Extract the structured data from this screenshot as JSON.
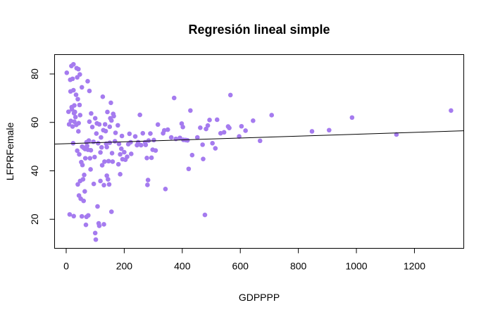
{
  "chart_data": {
    "type": "scatter",
    "title": "Regresión lineal simple",
    "xlabel": "GDPPPP",
    "ylabel": "LFPRFemale",
    "xlim": [
      -40,
      1370
    ],
    "ylim": [
      8,
      88
    ],
    "xticks": [
      0,
      200,
      400,
      600,
      800,
      1000,
      1200
    ],
    "yticks": [
      20,
      40,
      60,
      80
    ],
    "grid": false,
    "legend": "none",
    "point_color": "#A57BEF",
    "line_color": "#000000",
    "regression": {
      "intercept": 51.2,
      "slope": 0.0039
    },
    "points": [
      [
        2,
        80.5
      ],
      [
        8,
        64.4
      ],
      [
        10,
        59.2
      ],
      [
        12,
        22.0
      ],
      [
        14,
        77.6
      ],
      [
        15,
        72.8
      ],
      [
        16,
        60.6
      ],
      [
        18,
        83.3
      ],
      [
        19,
        66.3
      ],
      [
        20,
        65.4
      ],
      [
        22,
        78.0
      ],
      [
        22,
        58.3
      ],
      [
        24,
        51.4
      ],
      [
        25,
        84.0
      ],
      [
        25,
        73.3
      ],
      [
        26,
        21.3
      ],
      [
        27,
        63.8
      ],
      [
        28,
        67.0
      ],
      [
        28,
        60.3
      ],
      [
        30,
        64.3
      ],
      [
        32,
        62.2
      ],
      [
        34,
        71.4
      ],
      [
        35,
        59.0
      ],
      [
        36,
        82.4
      ],
      [
        38,
        78.6
      ],
      [
        38,
        48.3
      ],
      [
        40,
        69.6
      ],
      [
        40,
        34.4
      ],
      [
        42,
        82.0
      ],
      [
        42,
        56.3
      ],
      [
        43,
        59.7
      ],
      [
        44,
        29.8
      ],
      [
        45,
        46.8
      ],
      [
        46,
        67.2
      ],
      [
        47,
        79.8
      ],
      [
        48,
        63.0
      ],
      [
        48,
        35.8
      ],
      [
        50,
        28.5
      ],
      [
        52,
        43.6
      ],
      [
        54,
        21.2
      ],
      [
        54,
        74.5
      ],
      [
        55,
        50.0
      ],
      [
        56,
        42.4
      ],
      [
        58,
        36.5
      ],
      [
        60,
        49.5
      ],
      [
        60,
        27.6
      ],
      [
        62,
        38.3
      ],
      [
        64,
        31.5
      ],
      [
        65,
        49.0
      ],
      [
        66,
        45.2
      ],
      [
        68,
        17.7
      ],
      [
        70,
        51.8
      ],
      [
        70,
        21.0
      ],
      [
        72,
        50.3
      ],
      [
        74,
        77.0
      ],
      [
        75,
        48.7
      ],
      [
        76,
        21.6
      ],
      [
        78,
        52.5
      ],
      [
        80,
        73.0
      ],
      [
        80,
        60.3
      ],
      [
        82,
        45.2
      ],
      [
        84,
        40.6
      ],
      [
        85,
        48.5
      ],
      [
        86,
        63.7
      ],
      [
        90,
        58.1
      ],
      [
        94,
        52.0
      ],
      [
        95,
        34.6
      ],
      [
        98,
        45.7
      ],
      [
        100,
        14.3
      ],
      [
        100,
        61.7
      ],
      [
        102,
        11.6
      ],
      [
        104,
        55.4
      ],
      [
        106,
        59.6
      ],
      [
        108,
        25.3
      ],
      [
        110,
        51.4
      ],
      [
        112,
        18.3
      ],
      [
        114,
        59.2
      ],
      [
        114,
        17.3
      ],
      [
        118,
        35.8
      ],
      [
        118,
        47.6
      ],
      [
        120,
        53.8
      ],
      [
        122,
        49.7
      ],
      [
        124,
        42.3
      ],
      [
        126,
        70.6
      ],
      [
        128,
        56.8
      ],
      [
        130,
        34.1
      ],
      [
        130,
        17.9
      ],
      [
        132,
        43.8
      ],
      [
        134,
        59.2
      ],
      [
        136,
        56.4
      ],
      [
        138,
        51.2
      ],
      [
        140,
        49.8
      ],
      [
        140,
        38.0
      ],
      [
        142,
        64.3
      ],
      [
        144,
        36.5
      ],
      [
        146,
        44.0
      ],
      [
        148,
        34.4
      ],
      [
        150,
        58.2
      ],
      [
        150,
        51.6
      ],
      [
        152,
        61.7
      ],
      [
        154,
        68.1
      ],
      [
        156,
        60.8
      ],
      [
        156,
        23.1
      ],
      [
        158,
        47.3
      ],
      [
        160,
        43.8
      ],
      [
        162,
        63.5
      ],
      [
        164,
        62.6
      ],
      [
        168,
        52.2
      ],
      [
        170,
        55.7
      ],
      [
        178,
        58.8
      ],
      [
        180,
        42.7
      ],
      [
        182,
        51.1
      ],
      [
        186,
        46.8
      ],
      [
        186,
        38.6
      ],
      [
        190,
        49.1
      ],
      [
        192,
        54.4
      ],
      [
        194,
        44.8
      ],
      [
        200,
        47.7
      ],
      [
        204,
        44.6
      ],
      [
        210,
        45.8
      ],
      [
        214,
        51.0
      ],
      [
        218,
        55.3
      ],
      [
        222,
        51.8
      ],
      [
        224,
        47.0
      ],
      [
        238,
        54.2
      ],
      [
        244,
        50.6
      ],
      [
        248,
        51.8
      ],
      [
        254,
        63.1
      ],
      [
        258,
        50.6
      ],
      [
        264,
        55.5
      ],
      [
        272,
        51.8
      ],
      [
        274,
        50.7
      ],
      [
        278,
        45.3
      ],
      [
        280,
        34.2
      ],
      [
        282,
        36.2
      ],
      [
        284,
        52.5
      ],
      [
        290,
        55.4
      ],
      [
        294,
        45.4
      ],
      [
        298,
        48.7
      ],
      [
        302,
        52.7
      ],
      [
        308,
        48.4
      ],
      [
        316,
        59.1
      ],
      [
        334,
        55.5
      ],
      [
        338,
        56.7
      ],
      [
        342,
        32.5
      ],
      [
        350,
        57.0
      ],
      [
        362,
        53.8
      ],
      [
        372,
        70.1
      ],
      [
        378,
        53.2
      ],
      [
        392,
        53.6
      ],
      [
        398,
        59.5
      ],
      [
        402,
        58.1
      ],
      [
        404,
        52.8
      ],
      [
        412,
        52.7
      ],
      [
        418,
        52.6
      ],
      [
        422,
        40.8
      ],
      [
        428,
        64.9
      ],
      [
        434,
        46.5
      ],
      [
        452,
        53.8
      ],
      [
        462,
        57.8
      ],
      [
        470,
        50.8
      ],
      [
        472,
        44.9
      ],
      [
        478,
        21.8
      ],
      [
        482,
        57.3
      ],
      [
        488,
        58.7
      ],
      [
        494,
        61.0
      ],
      [
        504,
        51.4
      ],
      [
        514,
        49.3
      ],
      [
        520,
        61.1
      ],
      [
        532,
        55.5
      ],
      [
        544,
        55.9
      ],
      [
        558,
        58.3
      ],
      [
        562,
        57.7
      ],
      [
        566,
        71.3
      ],
      [
        596,
        54.2
      ],
      [
        604,
        58.4
      ],
      [
        618,
        56.6
      ],
      [
        644,
        60.7
      ],
      [
        668,
        52.4
      ],
      [
        708,
        63.0
      ],
      [
        847,
        56.3
      ],
      [
        906,
        56.8
      ],
      [
        985,
        62.0
      ],
      [
        1138,
        55.0
      ],
      [
        1326,
        64.9
      ]
    ]
  }
}
